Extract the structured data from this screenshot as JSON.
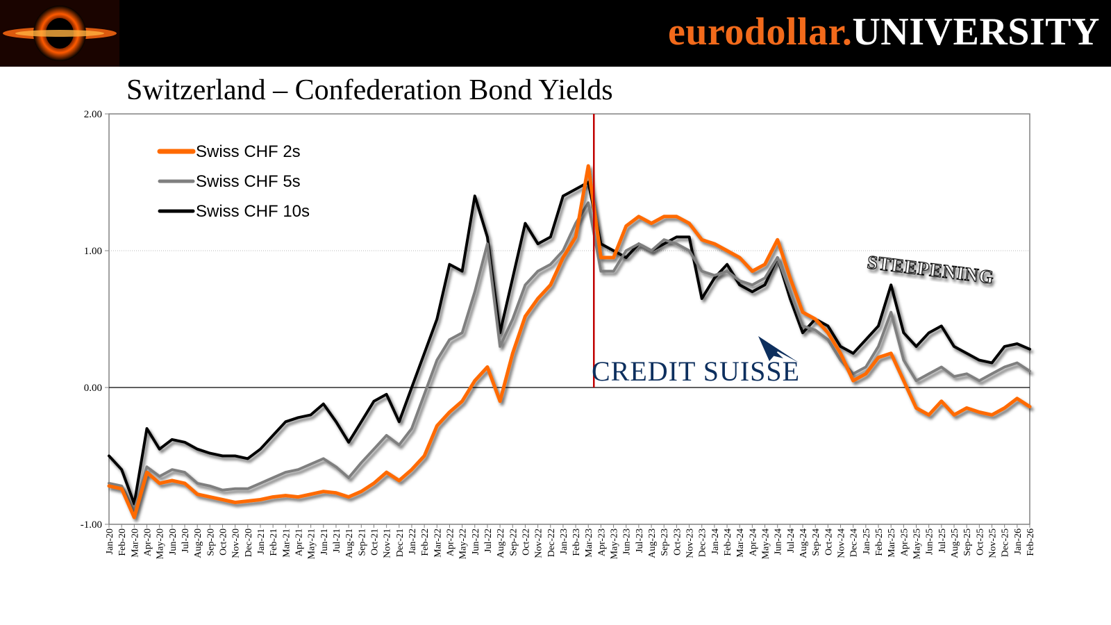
{
  "header": {
    "brand_part1": "eurodollar.",
    "brand_part2": "UNIVERSITY",
    "brand_color": "#f26a1b",
    "logo_icon": "black-hole-icon"
  },
  "chart_data": {
    "type": "line",
    "title": "Switzerland – Confederation Bond Yields",
    "xlabel": "",
    "ylabel": "",
    "ylim": [
      -1,
      2
    ],
    "yticks": [
      "-1.00",
      "0.00",
      "1.00",
      "2.00"
    ],
    "grid": "horizontal-dotted",
    "legend_position": "top-left",
    "categories": [
      "Jan-20",
      "Feb-20",
      "Mar-20",
      "Apr-20",
      "May-20",
      "Jun-20",
      "Jul-20",
      "Aug-20",
      "Sep-20",
      "Oct-20",
      "Nov-20",
      "Dec-20",
      "Jan-21",
      "Feb-21",
      "Mar-21",
      "Apr-21",
      "May-21",
      "Jun-21",
      "Jul-21",
      "Aug-21",
      "Sep-21",
      "Oct-21",
      "Nov-21",
      "Dec-21",
      "Jan-22",
      "Feb-22",
      "Mar-22",
      "Apr-22",
      "May-22",
      "Jun-22",
      "Jul-22",
      "Aug-22",
      "Sep-22",
      "Oct-22",
      "Nov-22",
      "Dec-22",
      "Jan-23",
      "Feb-23",
      "Mar-23",
      "Apr-23",
      "May-23",
      "Jun-23",
      "Jul-23",
      "Aug-23",
      "Sep-23",
      "Oct-23",
      "Nov-23",
      "Dec-23",
      "Jan-24",
      "Feb-24",
      "Mar-24",
      "Apr-24",
      "May-24",
      "Jun-24",
      "Jul-24",
      "Aug-24",
      "Sep-24",
      "Oct-24",
      "Nov-24",
      "Dec-24",
      "Jan-25",
      "Feb-25",
      "Mar-25",
      "Apr-25",
      "May-25",
      "Jun-25",
      "Jul-25",
      "Aug-25",
      "Sep-25",
      "Oct-25",
      "Nov-25",
      "Dec-25",
      "Jan-26",
      "Feb-26"
    ],
    "series": [
      {
        "name": "Swiss CHF 2s",
        "color": "#ff6a00",
        "values": [
          -0.72,
          -0.74,
          -0.95,
          -0.62,
          -0.7,
          -0.68,
          -0.7,
          -0.78,
          -0.8,
          -0.82,
          -0.84,
          -0.83,
          -0.82,
          -0.8,
          -0.79,
          -0.8,
          -0.78,
          -0.76,
          -0.77,
          -0.8,
          -0.76,
          -0.7,
          -0.62,
          -0.68,
          -0.6,
          -0.5,
          -0.28,
          -0.18,
          -0.1,
          0.05,
          0.15,
          -0.1,
          0.25,
          0.52,
          0.65,
          0.75,
          0.95,
          1.1,
          1.62,
          0.95,
          0.95,
          1.18,
          1.25,
          1.2,
          1.25,
          1.25,
          1.2,
          1.08,
          1.05,
          1.0,
          0.95,
          0.85,
          0.9,
          1.08,
          0.8,
          0.55,
          0.5,
          0.4,
          0.25,
          0.05,
          0.1,
          0.22,
          0.25,
          0.05,
          -0.15,
          -0.2,
          -0.1,
          -0.2,
          -0.15,
          -0.18,
          -0.2,
          -0.15,
          -0.08,
          -0.14
        ]
      },
      {
        "name": "Swiss CHF 5s",
        "color": "#7f7f7f",
        "values": [
          -0.7,
          -0.72,
          -0.9,
          -0.58,
          -0.65,
          -0.6,
          -0.62,
          -0.7,
          -0.72,
          -0.75,
          -0.74,
          -0.74,
          -0.7,
          -0.66,
          -0.62,
          -0.6,
          -0.56,
          -0.52,
          -0.58,
          -0.66,
          -0.55,
          -0.45,
          -0.35,
          -0.42,
          -0.3,
          -0.05,
          0.2,
          0.35,
          0.4,
          0.7,
          1.05,
          0.3,
          0.5,
          0.75,
          0.85,
          0.9,
          1.0,
          1.2,
          1.35,
          0.85,
          0.85,
          1.0,
          1.05,
          1.0,
          1.08,
          1.05,
          1.0,
          0.85,
          0.82,
          0.85,
          0.78,
          0.75,
          0.8,
          0.95,
          0.7,
          0.45,
          0.42,
          0.35,
          0.2,
          0.1,
          0.15,
          0.3,
          0.55,
          0.2,
          0.05,
          0.1,
          0.15,
          0.08,
          0.1,
          0.05,
          0.1,
          0.15,
          0.18,
          0.12
        ]
      },
      {
        "name": "Swiss CHF 10s",
        "color": "#000000",
        "values": [
          -0.5,
          -0.6,
          -0.85,
          -0.3,
          -0.45,
          -0.38,
          -0.4,
          -0.45,
          -0.48,
          -0.5,
          -0.5,
          -0.52,
          -0.45,
          -0.35,
          -0.25,
          -0.22,
          -0.2,
          -0.12,
          -0.25,
          -0.4,
          -0.25,
          -0.1,
          -0.05,
          -0.25,
          0.0,
          0.25,
          0.5,
          0.9,
          0.85,
          1.4,
          1.1,
          0.4,
          0.8,
          1.2,
          1.05,
          1.1,
          1.4,
          1.45,
          1.5,
          1.05,
          1.0,
          0.95,
          1.05,
          1.0,
          1.05,
          1.1,
          1.1,
          0.65,
          0.8,
          0.9,
          0.75,
          0.7,
          0.75,
          0.95,
          0.65,
          0.4,
          0.5,
          0.45,
          0.3,
          0.25,
          0.35,
          0.45,
          0.75,
          0.4,
          0.3,
          0.4,
          0.45,
          0.3,
          0.25,
          0.2,
          0.18,
          0.3,
          0.32,
          0.28
        ]
      }
    ],
    "annotations": {
      "event_marker": "Mar-23",
      "event_label": "CREDIT SUISSE",
      "steepening_label": "STEEPENING"
    }
  }
}
